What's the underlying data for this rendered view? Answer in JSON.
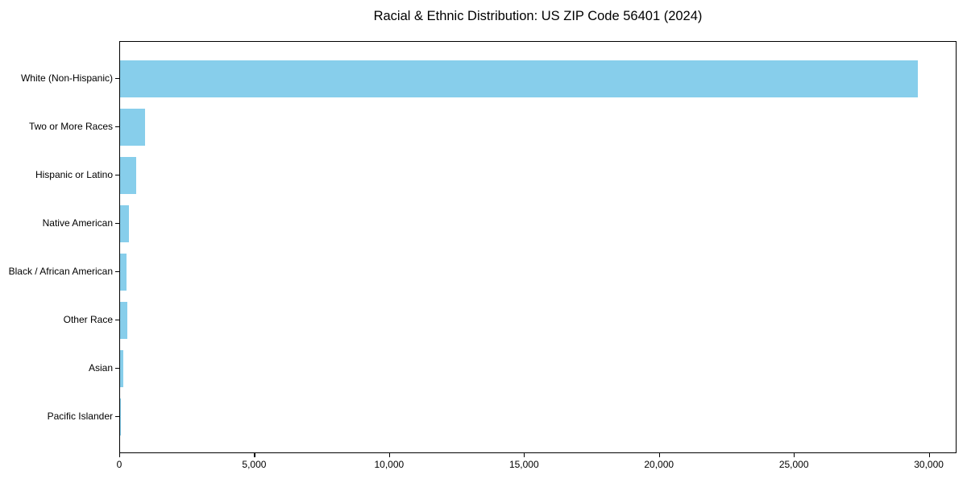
{
  "chart_data": {
    "type": "bar",
    "orientation": "horizontal",
    "title": "Racial & Ethnic Distribution: US ZIP Code 56401 (2024)",
    "categories": [
      "White (Non-Hispanic)",
      "Two or More Races",
      "Hispanic or Latino",
      "Native American",
      "Black / African American",
      "Other Race",
      "Asian",
      "Pacific Islander"
    ],
    "values": [
      29550,
      940,
      590,
      320,
      250,
      255,
      130,
      15
    ],
    "xlabel": "",
    "ylabel": "",
    "xlim": [
      0,
      31027
    ],
    "x_ticks": [
      0,
      5000,
      10000,
      15000,
      20000,
      25000,
      30000
    ],
    "x_tick_labels": [
      "0",
      "5,000",
      "10,000",
      "15,000",
      "20,000",
      "25,000",
      "30,000"
    ],
    "bar_color": "#87CEEB",
    "background_color": "#ffffff",
    "axis_color": "#000000",
    "grid": false,
    "legend": null
  }
}
